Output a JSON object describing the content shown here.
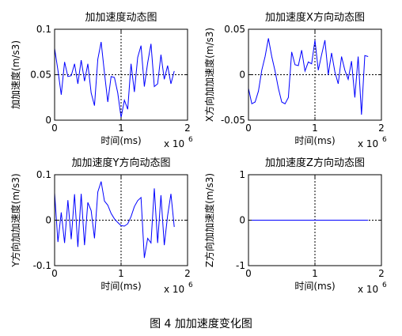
{
  "caption": "图 4  加加速度变化图",
  "chart_data": [
    {
      "type": "line",
      "title": "加加速度动态图",
      "xlabel": "时间(ms)",
      "ylabel": "加加速度(m/s3)",
      "x_exponent_label": "x 10",
      "x_exponent_power": "6",
      "xlim": [
        0,
        2
      ],
      "ylim": [
        0,
        0.1
      ],
      "x_ticks": [
        0,
        1,
        2
      ],
      "x_tick_labels": [
        "0",
        "1",
        "2"
      ],
      "y_ticks": [
        0,
        0.05,
        0.1
      ],
      "y_tick_labels": [
        "0",
        "0.05",
        "0.1"
      ],
      "grid": true,
      "series": [
        {
          "color": "#0000ff",
          "x": [
            0.0,
            0.05,
            0.1,
            0.15,
            0.2,
            0.25,
            0.3,
            0.35,
            0.4,
            0.45,
            0.5,
            0.55,
            0.6,
            0.65,
            0.7,
            0.75,
            0.8,
            0.85,
            0.9,
            0.95,
            1.0,
            1.05,
            1.1,
            1.15,
            1.2,
            1.25,
            1.3,
            1.35,
            1.4,
            1.45,
            1.5,
            1.55,
            1.6,
            1.65,
            1.7,
            1.75,
            1.8
          ],
          "y": [
            0.079,
            0.055,
            0.028,
            0.064,
            0.048,
            0.049,
            0.062,
            0.04,
            0.066,
            0.043,
            0.062,
            0.03,
            0.016,
            0.067,
            0.086,
            0.052,
            0.02,
            0.048,
            0.047,
            0.03,
            0.003,
            0.022,
            0.012,
            0.062,
            0.031,
            0.069,
            0.082,
            0.037,
            0.063,
            0.084,
            0.037,
            0.04,
            0.072,
            0.045,
            0.06,
            0.04,
            0.054
          ]
        }
      ]
    },
    {
      "type": "line",
      "title": "加加速度X方向动态图",
      "xlabel": "时间(ms)",
      "ylabel": "X方向加加速度(m/s3)",
      "x_exponent_label": "x 10",
      "x_exponent_power": "6",
      "xlim": [
        0,
        2
      ],
      "ylim": [
        -0.05,
        0.05
      ],
      "x_ticks": [
        0,
        1,
        2
      ],
      "x_tick_labels": [
        "0",
        "1",
        "2"
      ],
      "y_ticks": [
        -0.05,
        0,
        0.05
      ],
      "y_tick_labels": [
        "-0.05",
        "0",
        "0.05"
      ],
      "grid": true,
      "series": [
        {
          "color": "#0000ff",
          "x": [
            0.0,
            0.05,
            0.1,
            0.15,
            0.2,
            0.25,
            0.3,
            0.35,
            0.4,
            0.45,
            0.5,
            0.55,
            0.6,
            0.65,
            0.7,
            0.75,
            0.8,
            0.85,
            0.9,
            0.95,
            1.0,
            1.05,
            1.1,
            1.15,
            1.2,
            1.25,
            1.3,
            1.35,
            1.4,
            1.45,
            1.5,
            1.55,
            1.6,
            1.65,
            1.7,
            1.75,
            1.8
          ],
          "y": [
            -0.015,
            -0.032,
            -0.03,
            -0.018,
            0.005,
            0.02,
            0.04,
            0.02,
            0.004,
            -0.015,
            -0.03,
            -0.032,
            -0.025,
            0.025,
            0.011,
            0.01,
            0.027,
            0.004,
            0.014,
            0.012,
            0.038,
            0.005,
            0.022,
            0.038,
            0.0,
            0.024,
            0.003,
            -0.01,
            0.02,
            0.005,
            -0.005,
            0.015,
            -0.025,
            0.02,
            -0.044,
            0.021,
            0.02
          ]
        }
      ]
    },
    {
      "type": "line",
      "title": "加加速度Y方向动态图",
      "xlabel": "时间(ms)",
      "ylabel": "Y方向加加速度(m/s3)",
      "x_exponent_label": "x 10",
      "x_exponent_power": "6",
      "xlim": [
        0,
        2
      ],
      "ylim": [
        -0.1,
        0.1
      ],
      "x_ticks": [
        0,
        1,
        2
      ],
      "x_tick_labels": [
        "0",
        "1",
        "2"
      ],
      "y_ticks": [
        -0.1,
        0,
        0.1
      ],
      "y_tick_labels": [
        "-0.1",
        "0",
        "0.1"
      ],
      "grid": true,
      "series": [
        {
          "color": "#0000ff",
          "x": [
            0.0,
            0.05,
            0.1,
            0.15,
            0.2,
            0.25,
            0.3,
            0.35,
            0.4,
            0.45,
            0.5,
            0.55,
            0.6,
            0.65,
            0.7,
            0.75,
            0.8,
            0.85,
            0.9,
            0.95,
            1.0,
            1.05,
            1.1,
            1.15,
            1.2,
            1.25,
            1.3,
            1.35,
            1.4,
            1.45,
            1.5,
            1.55,
            1.6,
            1.65,
            1.7,
            1.75,
            1.8
          ],
          "y": [
            0.06,
            -0.048,
            0.017,
            -0.05,
            0.044,
            -0.042,
            0.057,
            -0.059,
            0.058,
            -0.055,
            0.039,
            0.021,
            -0.04,
            0.062,
            0.085,
            0.042,
            0.033,
            0.015,
            0.003,
            -0.005,
            -0.012,
            -0.013,
            -0.008,
            0.008,
            0.03,
            0.043,
            0.05,
            -0.083,
            -0.04,
            -0.05,
            0.07,
            -0.05,
            0.055,
            -0.055,
            0.01,
            0.058,
            -0.015
          ]
        }
      ]
    },
    {
      "type": "line",
      "title": "加加速度Z方向动态图",
      "xlabel": "时间(ms)",
      "ylabel": "Z方向加加速度(m/s3)",
      "x_exponent_label": "x 10",
      "x_exponent_power": "6",
      "xlim": [
        0,
        2
      ],
      "ylim": [
        -1,
        1
      ],
      "x_ticks": [
        0,
        1,
        2
      ],
      "x_tick_labels": [
        "0",
        "1",
        "2"
      ],
      "y_ticks": [
        -1,
        0,
        1
      ],
      "y_tick_labels": [
        "-1",
        "0",
        "1"
      ],
      "grid": true,
      "series": [
        {
          "color": "#0000ff",
          "x": [
            0.0,
            1.8
          ],
          "y": [
            0,
            0
          ]
        }
      ]
    }
  ]
}
